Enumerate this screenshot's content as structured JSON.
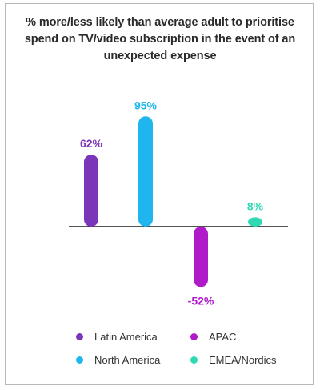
{
  "chart_data": {
    "type": "bar",
    "title": "% more/less likely than average adult to prioritise spend on TV/video subscription in the event of an unexpected expense",
    "categories": [
      "Latin America",
      "North America",
      "APAC",
      "EMEA/Nordics"
    ],
    "values": [
      62,
      95,
      -52,
      8
    ],
    "data_labels": [
      "62%",
      "95%",
      "-52%",
      "8%"
    ],
    "colors": [
      "#7a35b8",
      "#1fb6ef",
      "#b01bc9",
      "#2fd9b4"
    ],
    "ylim": [
      -60,
      100
    ],
    "grid": false,
    "legend": {
      "placement": "bottom",
      "entries": [
        {
          "label": "Latin America",
          "color": "#7a35b8"
        },
        {
          "label": "APAC",
          "color": "#b01bc9"
        },
        {
          "label": "North America",
          "color": "#1fb6ef"
        },
        {
          "label": "EMEA/Nordics",
          "color": "#2fd9b4"
        }
      ]
    }
  }
}
